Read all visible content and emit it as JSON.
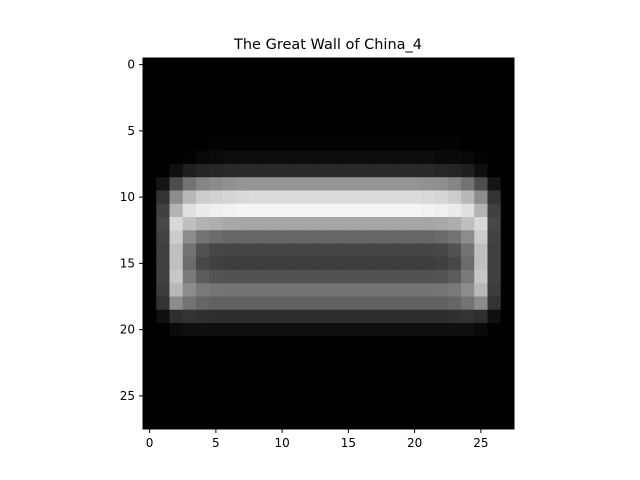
{
  "chart_data": {
    "type": "heatmap",
    "title": "The Great Wall of China_4",
    "xlabel": "",
    "ylabel": "",
    "colormap": "gray",
    "vmin": 0,
    "vmax": 1,
    "rows": 28,
    "cols": 28,
    "xlim": [
      -0.5,
      27.5
    ],
    "ylim": [
      27.5,
      -0.5
    ],
    "x_ticks": [
      0,
      5,
      10,
      15,
      20,
      25
    ],
    "y_ticks": [
      0,
      5,
      10,
      15,
      20,
      25
    ],
    "values": [
      [
        0,
        0,
        0,
        0,
        0,
        0,
        0,
        0,
        0,
        0,
        0,
        0,
        0,
        0,
        0,
        0,
        0,
        0,
        0,
        0,
        0,
        0,
        0,
        0,
        0,
        0,
        0,
        0
      ],
      [
        0,
        0,
        0,
        0,
        0,
        0,
        0,
        0,
        0,
        0,
        0,
        0,
        0,
        0,
        0,
        0,
        0,
        0,
        0,
        0,
        0,
        0,
        0,
        0,
        0,
        0,
        0,
        0
      ],
      [
        0,
        0,
        0,
        0,
        0,
        0,
        0,
        0,
        0,
        0,
        0,
        0,
        0,
        0,
        0,
        0,
        0,
        0,
        0,
        0,
        0,
        0,
        0,
        0,
        0,
        0,
        0,
        0
      ],
      [
        0,
        0,
        0,
        0,
        0,
        0,
        0,
        0,
        0,
        0,
        0,
        0,
        0,
        0,
        0,
        0,
        0,
        0,
        0,
        0,
        0,
        0,
        0,
        0,
        0,
        0,
        0,
        0
      ],
      [
        0,
        0,
        0,
        0,
        0,
        0,
        0,
        0,
        0,
        0,
        0,
        0,
        0,
        0,
        0,
        0,
        0,
        0,
        0,
        0,
        0,
        0,
        0,
        0,
        0,
        0,
        0,
        0
      ],
      [
        0,
        0,
        0,
        0,
        0,
        0,
        0,
        0,
        0,
        0,
        0,
        0,
        0,
        0,
        0,
        0,
        0,
        0,
        0,
        0,
        0,
        0,
        0,
        0,
        0,
        0,
        0,
        0
      ],
      [
        0,
        0,
        0,
        0,
        0,
        0.01,
        0.01,
        0.01,
        0.01,
        0.01,
        0.01,
        0.01,
        0.01,
        0.01,
        0.01,
        0.01,
        0.01,
        0.01,
        0.01,
        0.01,
        0.01,
        0.01,
        0.01,
        0.01,
        0,
        0,
        0,
        0
      ],
      [
        0,
        0,
        0,
        0.01,
        0.03,
        0.04,
        0.05,
        0.05,
        0.05,
        0.05,
        0.05,
        0.05,
        0.05,
        0.05,
        0.05,
        0.05,
        0.05,
        0.05,
        0.05,
        0.05,
        0.05,
        0.05,
        0.04,
        0.04,
        0.03,
        0.01,
        0,
        0
      ],
      [
        0,
        0,
        0.06,
        0.12,
        0.14,
        0.15,
        0.16,
        0.16,
        0.16,
        0.16,
        0.16,
        0.16,
        0.16,
        0.16,
        0.16,
        0.16,
        0.16,
        0.16,
        0.16,
        0.16,
        0.16,
        0.16,
        0.15,
        0.14,
        0.12,
        0.06,
        0,
        0
      ],
      [
        0,
        0.08,
        0.3,
        0.45,
        0.52,
        0.55,
        0.57,
        0.58,
        0.58,
        0.58,
        0.58,
        0.58,
        0.58,
        0.58,
        0.58,
        0.58,
        0.58,
        0.58,
        0.58,
        0.58,
        0.58,
        0.57,
        0.56,
        0.52,
        0.45,
        0.3,
        0.08,
        0
      ],
      [
        0,
        0.2,
        0.55,
        0.72,
        0.8,
        0.82,
        0.84,
        0.85,
        0.86,
        0.86,
        0.86,
        0.86,
        0.86,
        0.86,
        0.86,
        0.86,
        0.86,
        0.86,
        0.86,
        0.86,
        0.86,
        0.85,
        0.84,
        0.8,
        0.72,
        0.55,
        0.2,
        0
      ],
      [
        0,
        0.25,
        0.7,
        0.88,
        0.92,
        0.94,
        0.95,
        0.96,
        0.96,
        0.96,
        0.96,
        0.96,
        0.96,
        0.96,
        0.96,
        0.96,
        0.96,
        0.96,
        0.96,
        0.96,
        0.96,
        0.95,
        0.94,
        0.92,
        0.88,
        0.7,
        0.25,
        0
      ],
      [
        0,
        0.28,
        0.85,
        0.75,
        0.7,
        0.68,
        0.66,
        0.65,
        0.65,
        0.65,
        0.65,
        0.65,
        0.65,
        0.65,
        0.65,
        0.65,
        0.65,
        0.65,
        0.65,
        0.65,
        0.65,
        0.65,
        0.66,
        0.68,
        0.75,
        0.85,
        0.28,
        0
      ],
      [
        0,
        0.26,
        0.8,
        0.55,
        0.45,
        0.42,
        0.4,
        0.4,
        0.4,
        0.4,
        0.4,
        0.4,
        0.4,
        0.4,
        0.4,
        0.4,
        0.4,
        0.4,
        0.4,
        0.4,
        0.4,
        0.4,
        0.42,
        0.45,
        0.55,
        0.8,
        0.26,
        0
      ],
      [
        0,
        0.25,
        0.75,
        0.45,
        0.32,
        0.28,
        0.27,
        0.27,
        0.27,
        0.27,
        0.27,
        0.27,
        0.27,
        0.27,
        0.27,
        0.27,
        0.27,
        0.27,
        0.27,
        0.27,
        0.27,
        0.27,
        0.28,
        0.32,
        0.45,
        0.75,
        0.25,
        0
      ],
      [
        0,
        0.25,
        0.75,
        0.42,
        0.28,
        0.25,
        0.24,
        0.24,
        0.24,
        0.24,
        0.24,
        0.24,
        0.24,
        0.24,
        0.24,
        0.24,
        0.24,
        0.24,
        0.24,
        0.24,
        0.24,
        0.24,
        0.25,
        0.28,
        0.42,
        0.75,
        0.25,
        0
      ],
      [
        0,
        0.25,
        0.78,
        0.48,
        0.36,
        0.33,
        0.32,
        0.32,
        0.32,
        0.32,
        0.32,
        0.32,
        0.32,
        0.32,
        0.32,
        0.32,
        0.32,
        0.32,
        0.32,
        0.32,
        0.32,
        0.32,
        0.33,
        0.36,
        0.48,
        0.78,
        0.25,
        0
      ],
      [
        0,
        0.24,
        0.72,
        0.55,
        0.48,
        0.46,
        0.45,
        0.45,
        0.45,
        0.45,
        0.45,
        0.45,
        0.45,
        0.45,
        0.45,
        0.45,
        0.45,
        0.45,
        0.45,
        0.45,
        0.45,
        0.45,
        0.46,
        0.48,
        0.55,
        0.72,
        0.24,
        0
      ],
      [
        0,
        0.2,
        0.55,
        0.45,
        0.4,
        0.38,
        0.38,
        0.38,
        0.38,
        0.38,
        0.38,
        0.38,
        0.38,
        0.38,
        0.38,
        0.38,
        0.38,
        0.38,
        0.38,
        0.38,
        0.38,
        0.38,
        0.38,
        0.4,
        0.45,
        0.55,
        0.2,
        0
      ],
      [
        0,
        0.06,
        0.18,
        0.2,
        0.19,
        0.18,
        0.18,
        0.18,
        0.18,
        0.18,
        0.18,
        0.18,
        0.18,
        0.18,
        0.18,
        0.18,
        0.18,
        0.18,
        0.18,
        0.18,
        0.18,
        0.18,
        0.18,
        0.19,
        0.2,
        0.18,
        0.06,
        0
      ],
      [
        0,
        0,
        0.04,
        0.06,
        0.06,
        0.06,
        0.06,
        0.06,
        0.06,
        0.06,
        0.06,
        0.06,
        0.06,
        0.06,
        0.06,
        0.06,
        0.06,
        0.06,
        0.06,
        0.06,
        0.06,
        0.06,
        0.06,
        0.06,
        0.06,
        0.04,
        0,
        0
      ],
      [
        0,
        0,
        0,
        0,
        0,
        0,
        0,
        0,
        0,
        0,
        0,
        0,
        0,
        0,
        0,
        0,
        0,
        0,
        0,
        0,
        0,
        0,
        0,
        0,
        0,
        0,
        0,
        0
      ],
      [
        0,
        0,
        0,
        0,
        0,
        0,
        0,
        0,
        0,
        0,
        0,
        0,
        0,
        0,
        0,
        0,
        0,
        0,
        0,
        0,
        0,
        0,
        0,
        0,
        0,
        0,
        0,
        0
      ],
      [
        0,
        0,
        0,
        0,
        0,
        0,
        0,
        0,
        0,
        0,
        0,
        0,
        0,
        0,
        0,
        0,
        0,
        0,
        0,
        0,
        0,
        0,
        0,
        0,
        0,
        0,
        0,
        0
      ],
      [
        0,
        0,
        0,
        0,
        0,
        0,
        0,
        0,
        0,
        0,
        0,
        0,
        0,
        0,
        0,
        0,
        0,
        0,
        0,
        0,
        0,
        0,
        0,
        0,
        0,
        0,
        0,
        0
      ],
      [
        0,
        0,
        0,
        0,
        0,
        0,
        0,
        0,
        0,
        0,
        0,
        0,
        0,
        0,
        0,
        0,
        0,
        0,
        0,
        0,
        0,
        0,
        0,
        0,
        0,
        0,
        0,
        0
      ],
      [
        0,
        0,
        0,
        0,
        0,
        0,
        0,
        0,
        0,
        0,
        0,
        0,
        0,
        0,
        0,
        0,
        0,
        0,
        0,
        0,
        0,
        0,
        0,
        0,
        0,
        0,
        0,
        0
      ],
      [
        0,
        0,
        0,
        0,
        0,
        0,
        0,
        0,
        0,
        0,
        0,
        0,
        0,
        0,
        0,
        0,
        0,
        0,
        0,
        0,
        0,
        0,
        0,
        0,
        0,
        0,
        0,
        0
      ]
    ]
  }
}
